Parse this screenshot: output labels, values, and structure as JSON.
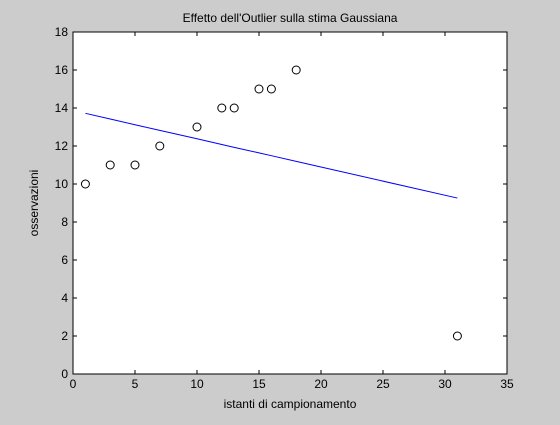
{
  "chart_data": {
    "type": "scatter",
    "title": "Effetto dell'Outlier sulla stima Gaussiana",
    "xlabel": "istanti di campionamento",
    "ylabel": "osservazioni",
    "xlim": [
      0,
      35
    ],
    "ylim": [
      0,
      18
    ],
    "xticks": [
      "0",
      "5",
      "10",
      "15",
      "20",
      "25",
      "30",
      "35"
    ],
    "yticks": [
      "0",
      "2",
      "4",
      "6",
      "8",
      "10",
      "12",
      "14",
      "16",
      "18"
    ],
    "grid": false,
    "series": [
      {
        "type": "scatter",
        "marker": "circle-open",
        "color": "#000000",
        "points": [
          {
            "x": 1,
            "y": 10
          },
          {
            "x": 3,
            "y": 11
          },
          {
            "x": 5,
            "y": 11
          },
          {
            "x": 7,
            "y": 12
          },
          {
            "x": 10,
            "y": 13
          },
          {
            "x": 12,
            "y": 14
          },
          {
            "x": 13,
            "y": 14
          },
          {
            "x": 15,
            "y": 15
          },
          {
            "x": 16,
            "y": 15
          },
          {
            "x": 18,
            "y": 16
          },
          {
            "x": 31,
            "y": 2
          }
        ]
      },
      {
        "type": "line",
        "color": "#0000ff",
        "points": [
          {
            "x": 1,
            "y": 13.72
          },
          {
            "x": 3,
            "y": 13.42
          },
          {
            "x": 5,
            "y": 13.12
          },
          {
            "x": 7,
            "y": 12.82
          },
          {
            "x": 10,
            "y": 12.38
          },
          {
            "x": 12,
            "y": 12.08
          },
          {
            "x": 13,
            "y": 11.93
          },
          {
            "x": 15,
            "y": 11.64
          },
          {
            "x": 16,
            "y": 11.49
          },
          {
            "x": 18,
            "y": 11.19
          },
          {
            "x": 31,
            "y": 9.26
          }
        ]
      }
    ]
  }
}
